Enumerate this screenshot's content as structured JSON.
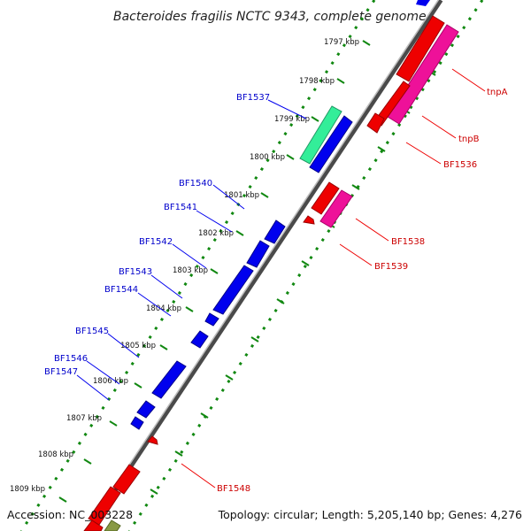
{
  "title": "Bacteroides fragilis NCTC 9343, complete genome",
  "footer": {
    "accession": "Accession: NC_003228",
    "summary": "Topology: circular; Length: 5,205,140 bp; Genes: 4,276"
  },
  "kbp_labels": [
    "1797 kbp",
    "1798 kbp",
    "1799 kbp",
    "1800 kbp",
    "1801 kbp",
    "1802 kbp",
    "1803 kbp",
    "1804 kbp",
    "1805 kbp",
    "1806 kbp",
    "1807 kbp",
    "1808 kbp",
    "1809 kbp"
  ],
  "forward_gene_labels": [
    "BF1537",
    "BF1540",
    "BF1541",
    "BF1542",
    "BF1543",
    "BF1544",
    "BF1545",
    "BF1546",
    "BF1547"
  ],
  "reverse_gene_labels": [
    "tnpA",
    "tnpB",
    "BF1536",
    "BF1538",
    "BF1539",
    "BF1548"
  ],
  "colors": {
    "forward_cds": "#0000ee",
    "reverse_cds": "#ee0000",
    "mobile_element": "#ee1199",
    "highlight_cds": "#22dd88",
    "axis": "#888888",
    "tick": "#118811",
    "forward_label": "#0000cc",
    "reverse_label": "#cc0000"
  }
}
